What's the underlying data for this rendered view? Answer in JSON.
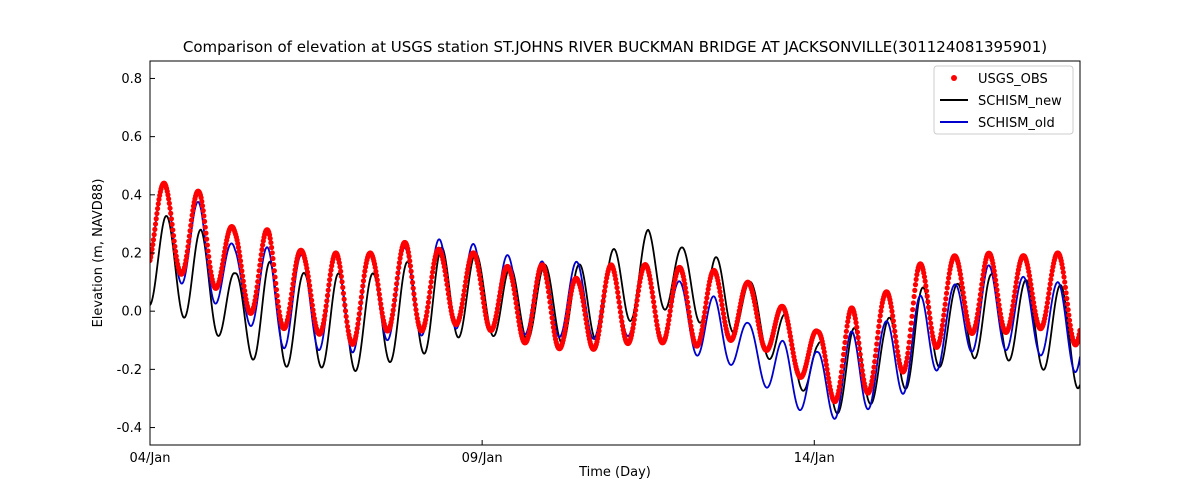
{
  "chart_data": {
    "type": "line",
    "title": "Comparison of elevation at USGS station ST.JOHNS RIVER BUCKMAN BRIDGE AT JACKSONVILLE(301124081395901)",
    "xlabel": "Time (Day)",
    "ylabel": "Elevation (m, NAVD88)",
    "xlim": [
      0,
      14.0
    ],
    "ylim": [
      -0.46,
      0.86
    ],
    "x_unit": "days since 04/Jan 00:00",
    "x_ticks": [
      {
        "value": 0,
        "label": "04/Jan"
      },
      {
        "value": 5,
        "label": "09/Jan"
      },
      {
        "value": 10,
        "label": "14/Jan"
      }
    ],
    "y_ticks": [
      -0.4,
      -0.2,
      0.0,
      0.2,
      0.4,
      0.6,
      0.8
    ],
    "legend": {
      "position": "top-right"
    },
    "tide_period_days": 0.5175,
    "series": [
      {
        "name": "USGS_OBS",
        "style": "markers",
        "color": "#ff0000",
        "sampling_interval_days": 0.0104,
        "tide_phase_days": 0.21,
        "anchors": [
          {
            "t": 0.22,
            "max": 0.44,
            "min": 0.15
          },
          {
            "t": 0.77,
            "max": 0.41,
            "min": 0.1
          },
          {
            "t": 1.28,
            "max": 0.28,
            "min": 0.05
          },
          {
            "t": 1.8,
            "max": 0.28,
            "min": -0.08
          },
          {
            "t": 2.34,
            "max": 0.2,
            "min": -0.03
          },
          {
            "t": 2.84,
            "max": 0.2,
            "min": -0.15
          },
          {
            "t": 3.37,
            "max": 0.2,
            "min": -0.06
          },
          {
            "t": 3.88,
            "max": 0.24,
            "min": -0.08
          },
          {
            "t": 4.4,
            "max": 0.21,
            "min": -0.05
          },
          {
            "t": 4.9,
            "max": 0.2,
            "min": -0.04
          },
          {
            "t": 5.42,
            "max": 0.15,
            "min": -0.1
          },
          {
            "t": 5.93,
            "max": 0.16,
            "min": -0.12
          },
          {
            "t": 6.45,
            "max": 0.11,
            "min": -0.14
          },
          {
            "t": 6.95,
            "max": 0.16,
            "min": -0.12
          },
          {
            "t": 7.5,
            "max": 0.16,
            "min": -0.1
          },
          {
            "t": 8.0,
            "max": 0.15,
            "min": -0.12
          },
          {
            "t": 8.5,
            "max": 0.14,
            "min": -0.12
          },
          {
            "t": 9.0,
            "max": 0.1,
            "min": -0.08
          },
          {
            "t": 9.5,
            "max": 0.02,
            "min": -0.18
          },
          {
            "t": 10.05,
            "max": -0.07,
            "min": -0.27
          },
          {
            "t": 10.55,
            "max": 0.01,
            "min": -0.35
          },
          {
            "t": 11.05,
            "max": 0.06,
            "min": -0.22
          },
          {
            "t": 11.55,
            "max": 0.16,
            "min": -0.2
          },
          {
            "t": 12.1,
            "max": 0.19,
            "min": -0.06
          },
          {
            "t": 12.6,
            "max": 0.2,
            "min": -0.09
          },
          {
            "t": 13.1,
            "max": 0.19,
            "min": -0.06
          },
          {
            "t": 13.65,
            "max": 0.2,
            "min": -0.06
          },
          {
            "t": 14.0,
            "max": 0.2,
            "min": -0.13
          }
        ]
      },
      {
        "name": "SCHISM_new",
        "style": "line",
        "color": "#000000",
        "sampling_interval_days": 0.01,
        "tide_phase_days": 0.25,
        "anchors": [
          {
            "t": 0.22,
            "max": 0.33,
            "min": 0.02
          },
          {
            "t": 0.77,
            "max": 0.28,
            "min": -0.06
          },
          {
            "t": 1.28,
            "max": 0.13,
            "min": -0.11
          },
          {
            "t": 1.8,
            "max": 0.17,
            "min": -0.22
          },
          {
            "t": 2.34,
            "max": 0.13,
            "min": -0.16
          },
          {
            "t": 2.84,
            "max": 0.13,
            "min": -0.23
          },
          {
            "t": 3.37,
            "max": 0.13,
            "min": -0.18
          },
          {
            "t": 3.88,
            "max": 0.17,
            "min": -0.17
          },
          {
            "t": 4.4,
            "max": 0.22,
            "min": -0.12
          },
          {
            "t": 4.9,
            "max": 0.2,
            "min": -0.06
          },
          {
            "t": 5.42,
            "max": 0.15,
            "min": -0.11
          },
          {
            "t": 5.93,
            "max": 0.16,
            "min": -0.09
          },
          {
            "t": 6.45,
            "max": 0.16,
            "min": -0.13
          },
          {
            "t": 6.95,
            "max": 0.21,
            "min": -0.07
          },
          {
            "t": 7.5,
            "max": 0.28,
            "min": 0.0
          },
          {
            "t": 8.0,
            "max": 0.22,
            "min": 0.01
          },
          {
            "t": 8.5,
            "max": 0.19,
            "min": -0.08
          },
          {
            "t": 9.0,
            "max": 0.11,
            "min": -0.07
          },
          {
            "t": 9.5,
            "max": 0.0,
            "min": -0.22
          },
          {
            "t": 10.05,
            "max": -0.11,
            "min": -0.31
          },
          {
            "t": 10.55,
            "max": -0.06,
            "min": -0.38
          },
          {
            "t": 11.05,
            "max": -0.04,
            "min": -0.28
          },
          {
            "t": 11.55,
            "max": 0.08,
            "min": -0.26
          },
          {
            "t": 12.1,
            "max": 0.09,
            "min": -0.15
          },
          {
            "t": 12.6,
            "max": 0.13,
            "min": -0.17
          },
          {
            "t": 13.1,
            "max": 0.11,
            "min": -0.17
          },
          {
            "t": 13.65,
            "max": 0.09,
            "min": -0.22
          },
          {
            "t": 14.0,
            "max": 0.09,
            "min": -0.27
          }
        ]
      },
      {
        "name": "SCHISM_old",
        "style": "line",
        "color": "#0000cd",
        "sampling_interval_days": 0.01,
        "tide_phase_days": 0.21,
        "anchors": [
          {
            "t": 0.22,
            "max": 0.44,
            "min": 0.15
          },
          {
            "t": 0.77,
            "max": 0.37,
            "min": 0.03
          },
          {
            "t": 1.28,
            "max": 0.22,
            "min": 0.02
          },
          {
            "t": 1.8,
            "max": 0.22,
            "min": -0.14
          },
          {
            "t": 2.34,
            "max": 0.19,
            "min": -0.11
          },
          {
            "t": 2.84,
            "max": 0.2,
            "min": -0.17
          },
          {
            "t": 3.37,
            "max": 0.2,
            "min": -0.1
          },
          {
            "t": 3.88,
            "max": 0.22,
            "min": -0.1
          },
          {
            "t": 4.4,
            "max": 0.25,
            "min": -0.06
          },
          {
            "t": 4.9,
            "max": 0.23,
            "min": -0.06
          },
          {
            "t": 5.42,
            "max": 0.19,
            "min": -0.08
          },
          {
            "t": 5.93,
            "max": 0.17,
            "min": -0.08
          },
          {
            "t": 6.45,
            "max": 0.17,
            "min": -0.1
          },
          {
            "t": 6.95,
            "max": 0.15,
            "min": -0.09
          },
          {
            "t": 7.5,
            "max": 0.15,
            "min": -0.08
          },
          {
            "t": 8.0,
            "max": 0.1,
            "min": -0.12
          },
          {
            "t": 8.5,
            "max": 0.05,
            "min": -0.19
          },
          {
            "t": 9.0,
            "max": -0.04,
            "min": -0.18
          },
          {
            "t": 9.5,
            "max": -0.1,
            "min": -0.33
          },
          {
            "t": 10.05,
            "max": -0.14,
            "min": -0.35
          },
          {
            "t": 10.55,
            "max": -0.07,
            "min": -0.39
          },
          {
            "t": 11.05,
            "max": -0.04,
            "min": -0.29
          },
          {
            "t": 11.55,
            "max": 0.05,
            "min": -0.28
          },
          {
            "t": 12.1,
            "max": 0.09,
            "min": -0.14
          },
          {
            "t": 12.6,
            "max": 0.16,
            "min": -0.14
          },
          {
            "t": 13.1,
            "max": 0.12,
            "min": -0.13
          },
          {
            "t": 13.65,
            "max": 0.1,
            "min": -0.17
          },
          {
            "t": 14.0,
            "max": 0.1,
            "min": -0.22
          }
        ]
      }
    ]
  }
}
